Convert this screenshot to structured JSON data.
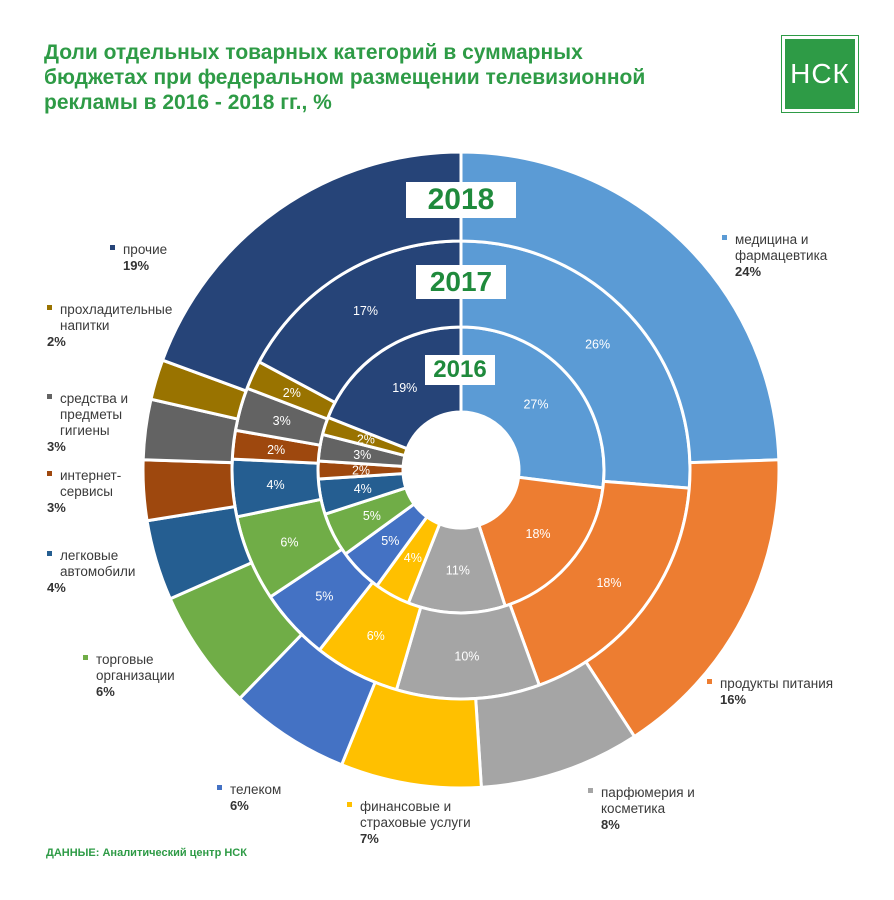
{
  "title": "Доли отдельных товарных категорий в суммарных бюджетах при федеральном размещении телевизионной рекламы в 2016 - 2018 гг., %",
  "logo": "НСК",
  "source": "ДАННЫЕ: Аналитический центр НСК",
  "colors": {
    "medicine": "#5b9bd5",
    "food": "#ed7d31",
    "perfume": "#a5a5a5",
    "finance": "#ffc000",
    "telecom": "#4472c4",
    "retail": "#70ad47",
    "auto": "#255e91",
    "internet": "#9e480e",
    "hygiene": "#636363",
    "drinks": "#997300",
    "other": "#264478"
  },
  "chart_data": {
    "type": "donut",
    "title": "Доли отдельных товарных категорий в суммарных бюджетах при федеральном размещении телевизионной рекламы в 2016 - 2018 гг., %",
    "categories": [
      "медицина и фармацевтика",
      "продукты питания",
      "парфюмерия и косметика",
      "финансовые и страховые услуги",
      "телеком",
      "торговые организации",
      "легковые автомобили",
      "интернет-сервисы",
      "средства и предметы гигиены",
      "прохладительные напитки",
      "прочие"
    ],
    "series": [
      {
        "name": "2016",
        "values": [
          27,
          18,
          11,
          4,
          5,
          5,
          4,
          2,
          3,
          2,
          19
        ]
      },
      {
        "name": "2017",
        "values": [
          26,
          18,
          10,
          6,
          5,
          6,
          4,
          2,
          3,
          2,
          17
        ]
      },
      {
        "name": "2018",
        "values": [
          24,
          16,
          8,
          7,
          6,
          6,
          4,
          3,
          3,
          2,
          19
        ]
      }
    ],
    "value_labels": {
      "2016": [
        "27%",
        "18%",
        "11%",
        "4%",
        "5%",
        "5%",
        "4%",
        "2%",
        "3%",
        "2%",
        "19%"
      ],
      "2017": [
        "26%",
        "18%",
        "10%",
        "6%",
        "5%",
        "6%",
        "4%",
        "2%",
        "3%",
        "2%",
        "17%"
      ]
    },
    "unit": "%"
  },
  "legend": [
    {
      "key": "medicine",
      "label": "медицина и\nфармацевтика",
      "pct": "24%"
    },
    {
      "key": "food",
      "label": "продукты питания",
      "pct": "16%"
    },
    {
      "key": "perfume",
      "label": "парфюмерия и\nкосметика",
      "pct": "8%"
    },
    {
      "key": "finance",
      "label": "финансовые и\nстраховые услуги",
      "pct": "7%"
    },
    {
      "key": "telecom",
      "label": "телеком",
      "pct": "6%"
    },
    {
      "key": "retail",
      "label": "торговые\nорганизации",
      "pct": "6%"
    },
    {
      "key": "auto",
      "label": "легковые\nавтомобили",
      "pct": "4%"
    },
    {
      "key": "internet",
      "label": "интернет-\nсервисы",
      "pct": "3%"
    },
    {
      "key": "hygiene",
      "label": "средства и\nпредметы\nгигиены",
      "pct": "3%"
    },
    {
      "key": "drinks",
      "label": "прохладительные\nнапитки",
      "pct": "2%"
    },
    {
      "key": "other",
      "label": "прочие",
      "pct": "19%"
    }
  ]
}
